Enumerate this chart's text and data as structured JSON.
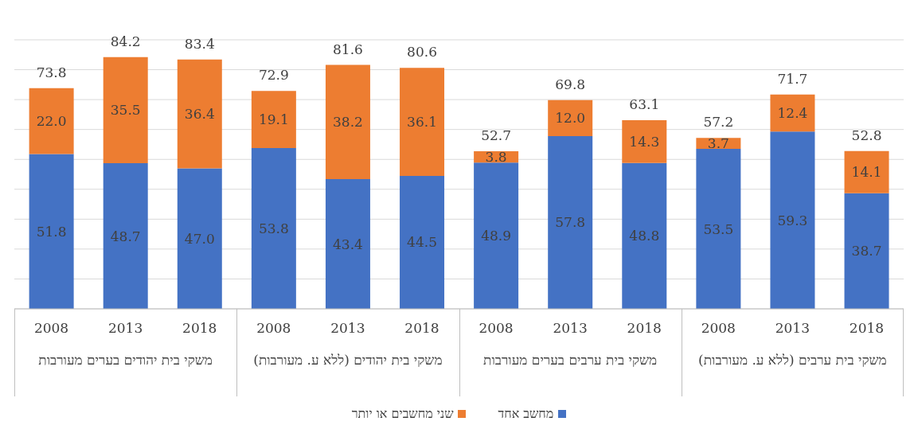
{
  "chart_data": {
    "type": "bar",
    "stacked": true,
    "categories": [
      "2008",
      "2013",
      "2018",
      "2008",
      "2013",
      "2018",
      "2008",
      "2013",
      "2018",
      "2008",
      "2013",
      "2018"
    ],
    "series": [
      {
        "name": "מחשב אחד",
        "color": "#4472c4",
        "values": [
          51.8,
          48.7,
          47.0,
          53.8,
          43.4,
          44.5,
          48.9,
          57.8,
          48.8,
          53.5,
          59.3,
          38.7
        ],
        "value_labels": [
          "51.8",
          "48.7",
          "47.0",
          "53.8",
          "43.4",
          "44.5",
          "48.9",
          "57.8",
          "48.8",
          "53.5",
          "59.3",
          "38.7"
        ]
      },
      {
        "name": "שני מחשבים או יותר",
        "color": "#ed7d31",
        "values": [
          22.0,
          35.5,
          36.4,
          19.1,
          38.2,
          36.1,
          3.8,
          12.0,
          14.3,
          3.7,
          12.4,
          14.1
        ],
        "value_labels": [
          "22.0",
          "35.5",
          "36.4",
          "19.1",
          "38.2",
          "36.1",
          "3.8",
          "12.0",
          "14.3",
          "3.7",
          "12.4",
          "14.1"
        ]
      }
    ],
    "totals": [
      "73.8",
      "84.2",
      "83.4",
      "72.9",
      "81.6",
      "80.6",
      "52.7",
      "69.8",
      "63.1",
      "57.2",
      "71.7",
      "52.8"
    ],
    "annotations": [
      "משקי בית יהודים בערים מעורבות",
      "משקי בית יהודים (ללא ע. מעורבות)",
      "משקי בית ערבים בערים מעורבות",
      "משקי בית ערבים (ללא ע. מעורבות)"
    ],
    "ylim": [
      0,
      90
    ],
    "yticks": [
      {
        "value": 0,
        "label": null
      },
      {
        "value": 10,
        "label": null
      },
      {
        "value": 20,
        "label": null
      },
      {
        "value": 30,
        "label": null
      },
      {
        "value": 40,
        "label": null
      },
      {
        "value": 50,
        "label": null
      },
      {
        "value": 60,
        "label": null
      },
      {
        "value": 70,
        "label": null
      },
      {
        "value": 80,
        "label": null
      },
      {
        "value": 90,
        "label": null
      }
    ],
    "tick_labels": "x",
    "grid": "y",
    "legend": "bottom"
  }
}
